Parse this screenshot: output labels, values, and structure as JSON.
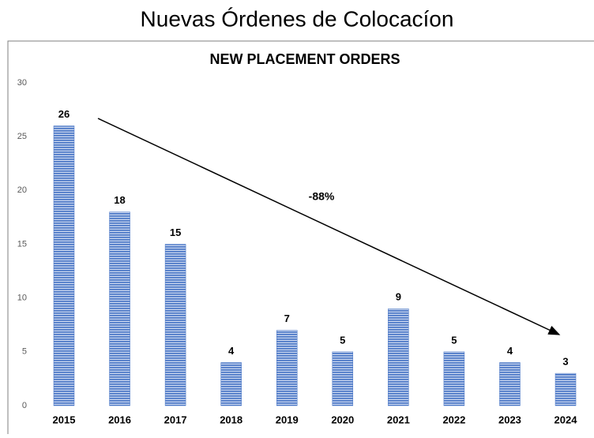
{
  "page_title": "Nuevas Órdenes de Colocacíon",
  "chart_data": {
    "type": "bar",
    "title": "NEW PLACEMENT ORDERS",
    "categories": [
      "2015",
      "2016",
      "2017",
      "2018",
      "2019",
      "2020",
      "2021",
      "2022",
      "2023",
      "2024"
    ],
    "values": [
      26,
      18,
      15,
      4,
      7,
      5,
      9,
      5,
      4,
      3
    ],
    "color": "#4472c4",
    "ylim": [
      0,
      30
    ],
    "yticks": [
      0,
      5,
      10,
      15,
      20,
      25,
      30
    ],
    "grid": false,
    "annotations": [
      "-88%"
    ]
  }
}
